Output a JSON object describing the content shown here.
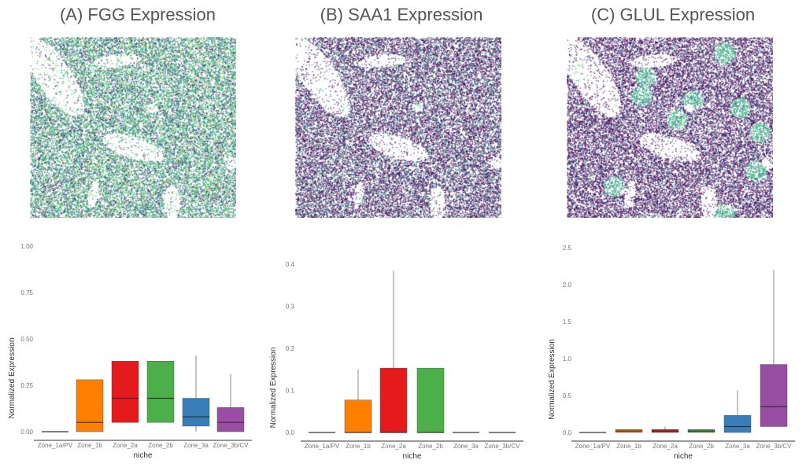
{
  "colors": {
    "viridis_low": "#440154",
    "viridis_mid": "#31688e",
    "viridis_teal": "#35b779",
    "viridis_high": "#a0da39",
    "zones": [
      "#555555",
      "#ff7f00",
      "#e41a1c",
      "#4daf4a",
      "#377eb8",
      "#984ea3"
    ]
  },
  "chart_data": [
    {
      "type": "box",
      "title": "(A) FGG Expression",
      "xlabel": "niche",
      "ylabel": "Normalized Expression",
      "ylim": [
        0,
        1.0
      ],
      "yticks": [
        "0.00",
        "0.25",
        "0.50",
        "0.75",
        "1.00"
      ],
      "ytick_values": [
        0,
        0.25,
        0.5,
        0.75,
        1.0
      ],
      "categories": [
        "Zone_1a/PV",
        "Zone_1b",
        "Zone_2a",
        "Zone_2b",
        "Zone_3a",
        "Zone_3b/CV"
      ],
      "boxes": [
        {
          "low": 0,
          "q1": 0,
          "median": 0,
          "q3": 0,
          "high": 0
        },
        {
          "low": 0,
          "q1": 0,
          "median": 0.05,
          "q3": 0.28,
          "high": 0.28
        },
        {
          "low": 0.05,
          "q1": 0.05,
          "median": 0.18,
          "q3": 0.38,
          "high": 0.38
        },
        {
          "low": 0.05,
          "q1": 0.05,
          "median": 0.18,
          "q3": 0.38,
          "high": 0.38
        },
        {
          "low": 0,
          "q1": 0.03,
          "median": 0.08,
          "q3": 0.18,
          "high": 0.41
        },
        {
          "low": 0,
          "q1": 0,
          "median": 0.05,
          "q3": 0.13,
          "high": 0.31
        }
      ]
    },
    {
      "type": "box",
      "title": "(B) SAA1 Expression",
      "xlabel": "niche",
      "ylabel": "Normalized Expression",
      "ylim": [
        0,
        0.4
      ],
      "yticks": [
        "0.0",
        "0.1",
        "0.2",
        "0.3",
        "0.4"
      ],
      "ytick_values": [
        0,
        0.1,
        0.2,
        0.3,
        0.4
      ],
      "categories": [
        "Zone_1a/PV",
        "Zone_1b",
        "Zone_2a",
        "Zone_2b",
        "Zone_3a",
        "Zone_3b/CV"
      ],
      "boxes": [
        {
          "low": 0,
          "q1": 0,
          "median": 0,
          "q3": 0,
          "high": 0
        },
        {
          "low": 0,
          "q1": 0,
          "median": 0,
          "q3": 0.077,
          "high": 0.15
        },
        {
          "low": 0,
          "q1": 0,
          "median": 0,
          "q3": 0.153,
          "high": 0.385
        },
        {
          "low": 0,
          "q1": 0,
          "median": 0,
          "q3": 0.153,
          "high": 0.153
        },
        {
          "low": 0,
          "q1": 0,
          "median": 0,
          "q3": 0,
          "high": 0
        },
        {
          "low": 0,
          "q1": 0,
          "median": 0,
          "q3": 0,
          "high": 0
        }
      ]
    },
    {
      "type": "box",
      "title": "(C) GLUL Expression",
      "xlabel": "niche",
      "ylabel": "Normalized Expression",
      "ylim": [
        0,
        2.5
      ],
      "yticks": [
        "0.0",
        "0.5",
        "1.0",
        "1.5",
        "2.0",
        "2.5"
      ],
      "ytick_values": [
        0,
        0.5,
        1.0,
        1.5,
        2.0,
        2.5
      ],
      "categories": [
        "Zone_1a/PV",
        "Zone_1b",
        "Zone_2a",
        "Zone_2b",
        "Zone_3a",
        "Zone_3b/CV"
      ],
      "boxes": [
        {
          "low": 0,
          "q1": 0,
          "median": 0,
          "q3": 0,
          "high": 0
        },
        {
          "low": 0,
          "q1": 0,
          "median": 0.02,
          "q3": 0.04,
          "high": 0.04
        },
        {
          "low": 0,
          "q1": 0,
          "median": 0.02,
          "q3": 0.04,
          "high": 0.08
        },
        {
          "low": 0,
          "q1": 0,
          "median": 0.02,
          "q3": 0.04,
          "high": 0.04
        },
        {
          "low": 0,
          "q1": 0,
          "median": 0.08,
          "q3": 0.23,
          "high": 0.57
        },
        {
          "low": 0.08,
          "q1": 0.08,
          "median": 0.35,
          "q3": 0.92,
          "high": 2.2
        }
      ]
    }
  ]
}
